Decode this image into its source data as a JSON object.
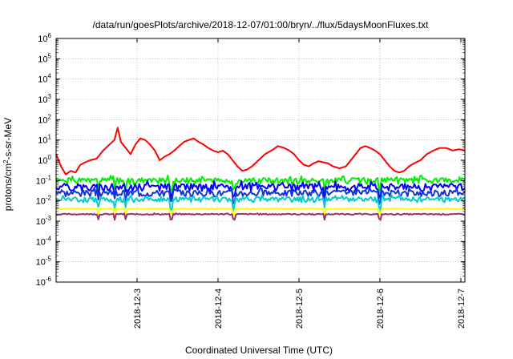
{
  "chart_data": {
    "type": "line",
    "title": "/data/run/goesPlots/archive/2018-12-07/01:00/bryn/../flux/5daysMoonFluxes.txt",
    "xlabel": "Coordinated Universal Time (UTC)",
    "ylabel": {
      "prefix": "protons/cm",
      "sup": "2",
      "suffix": "-s-sr-MeV"
    },
    "yscale": "log",
    "ylim": [
      1e-06,
      1000000.0
    ],
    "xlim": [
      2.0,
      7.05
    ],
    "grid": true,
    "legend": "none",
    "x_ticks": [
      {
        "x": 3,
        "label": "2018-12-3"
      },
      {
        "x": 4,
        "label": "2018-12-4"
      },
      {
        "x": 5,
        "label": "2018-12-5"
      },
      {
        "x": 6,
        "label": "2018-12-6"
      },
      {
        "x": 7,
        "label": "2018-12-7"
      }
    ],
    "y_ticks": [
      {
        "exp": -6,
        "label": "10",
        "sup": "-6"
      },
      {
        "exp": -5,
        "label": "10",
        "sup": "-5"
      },
      {
        "exp": -4,
        "label": "10",
        "sup": "-4"
      },
      {
        "exp": -3,
        "label": "10",
        "sup": "-3"
      },
      {
        "exp": -2,
        "label": "10",
        "sup": "-2"
      },
      {
        "exp": -1,
        "label": "10",
        "sup": "-1"
      },
      {
        "exp": 0,
        "label": "10",
        "sup": "0"
      },
      {
        "exp": 1,
        "label": "10",
        "sup": "1"
      },
      {
        "exp": 2,
        "label": "10",
        "sup": "2"
      },
      {
        "exp": 3,
        "label": "10",
        "sup": "3"
      },
      {
        "exp": 4,
        "label": "10",
        "sup": "4"
      },
      {
        "exp": 5,
        "label": "10",
        "sup": "5"
      },
      {
        "exp": 6,
        "label": "10",
        "sup": "6"
      }
    ],
    "series": [
      {
        "color": "#ff0000",
        "x": [
          2.0,
          2.06,
          2.12,
          2.18,
          2.24,
          2.3,
          2.36,
          2.42,
          2.5,
          2.58,
          2.66,
          2.72,
          2.76,
          2.8,
          2.86,
          2.92,
          2.98,
          3.04,
          3.1,
          3.16,
          3.22,
          3.28,
          3.34,
          3.4,
          3.46,
          3.52,
          3.58,
          3.64,
          3.7,
          3.76,
          3.82,
          3.88,
          3.94,
          4.0,
          4.06,
          4.12,
          4.18,
          4.24,
          4.3,
          4.36,
          4.42,
          4.5,
          4.58,
          4.66,
          4.74,
          4.82,
          4.88,
          4.94,
          5.0,
          5.06,
          5.12,
          5.18,
          5.24,
          5.3,
          5.36,
          5.42,
          5.5,
          5.58,
          5.64,
          5.7,
          5.76,
          5.82,
          5.88,
          5.94,
          6.0,
          6.06,
          6.12,
          6.18,
          6.24,
          6.3,
          6.36,
          6.42,
          6.5,
          6.58,
          6.66,
          6.74,
          6.82,
          6.9,
          6.98,
          7.05
        ],
        "y": [
          2.0,
          0.5,
          0.2,
          0.3,
          0.25,
          0.6,
          0.8,
          1.0,
          1.2,
          3.0,
          6.0,
          10.0,
          40.0,
          8.0,
          4.0,
          2.0,
          6.0,
          12.0,
          10.0,
          6.0,
          3.0,
          1.0,
          1.5,
          2.0,
          3.0,
          5.0,
          8.0,
          10.0,
          12.0,
          8.0,
          6.0,
          4.0,
          3.0,
          2.5,
          3.0,
          2.0,
          1.0,
          0.5,
          0.3,
          0.35,
          0.5,
          1.0,
          2.0,
          3.0,
          5.0,
          4.0,
          3.0,
          2.0,
          1.0,
          0.6,
          0.5,
          0.7,
          0.9,
          0.8,
          0.7,
          0.5,
          0.4,
          0.5,
          1.0,
          2.0,
          4.0,
          5.0,
          4.0,
          3.0,
          2.0,
          1.0,
          0.5,
          0.3,
          0.25,
          0.3,
          0.5,
          0.7,
          1.0,
          2.0,
          3.0,
          4.0,
          4.0,
          3.0,
          3.5,
          3.0
        ]
      },
      {
        "color": "#00ee00",
        "base": 0.1,
        "amp": 0.35,
        "seed": 1
      },
      {
        "color": "#0000ff",
        "base": 0.05,
        "amp": 0.4,
        "seed": 2
      },
      {
        "color": "#1133dd",
        "base": 0.025,
        "amp": 0.35,
        "seed": 3
      },
      {
        "color": "#00cccc",
        "base": 0.012,
        "amp": 0.3,
        "seed": 4
      },
      {
        "color": "#ffff00",
        "base": 0.004,
        "amp": 0.05,
        "seed": 5
      },
      {
        "color": "#993366",
        "base": 0.0022,
        "amp": 0.06,
        "seed": 6
      }
    ]
  }
}
